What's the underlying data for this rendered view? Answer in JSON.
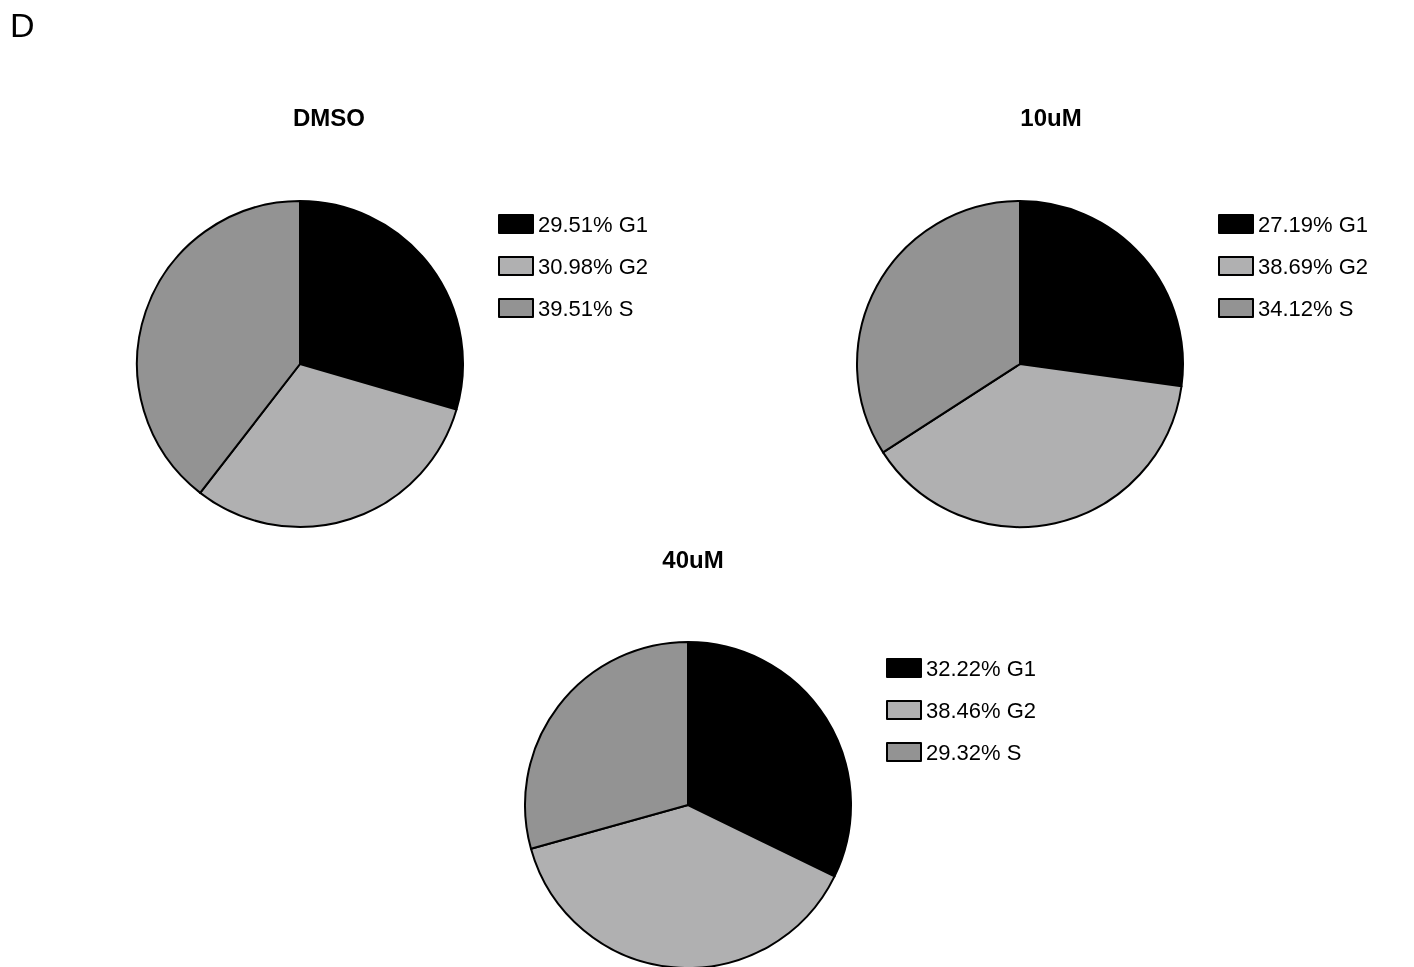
{
  "chart_data": [
    {
      "type": "pie",
      "title": "DMSO",
      "annotations": [
        "D"
      ],
      "categories": [
        "29.51% G1",
        "30.98% G2",
        "39.51% S"
      ],
      "values": [
        29.51,
        30.98,
        39.51
      ],
      "colors": [
        "#000000",
        "#b0b0b1",
        "#939393"
      ],
      "legend": "right"
    },
    {
      "type": "pie",
      "title": "10uM",
      "categories": [
        "27.19% G1",
        "38.69% G2",
        "34.12% S"
      ],
      "values": [
        27.19,
        38.69,
        34.12
      ],
      "colors": [
        "#000000",
        "#b0b0b1",
        "#939393"
      ],
      "legend": "right"
    },
    {
      "type": "pie",
      "title": "40uM",
      "categories": [
        "32.22% G1",
        "38.46% G2",
        "29.32% S"
      ],
      "values": [
        32.22,
        38.46,
        29.32
      ],
      "colors": [
        "#000000",
        "#b0b0b1",
        "#939393"
      ],
      "legend": "right"
    }
  ]
}
